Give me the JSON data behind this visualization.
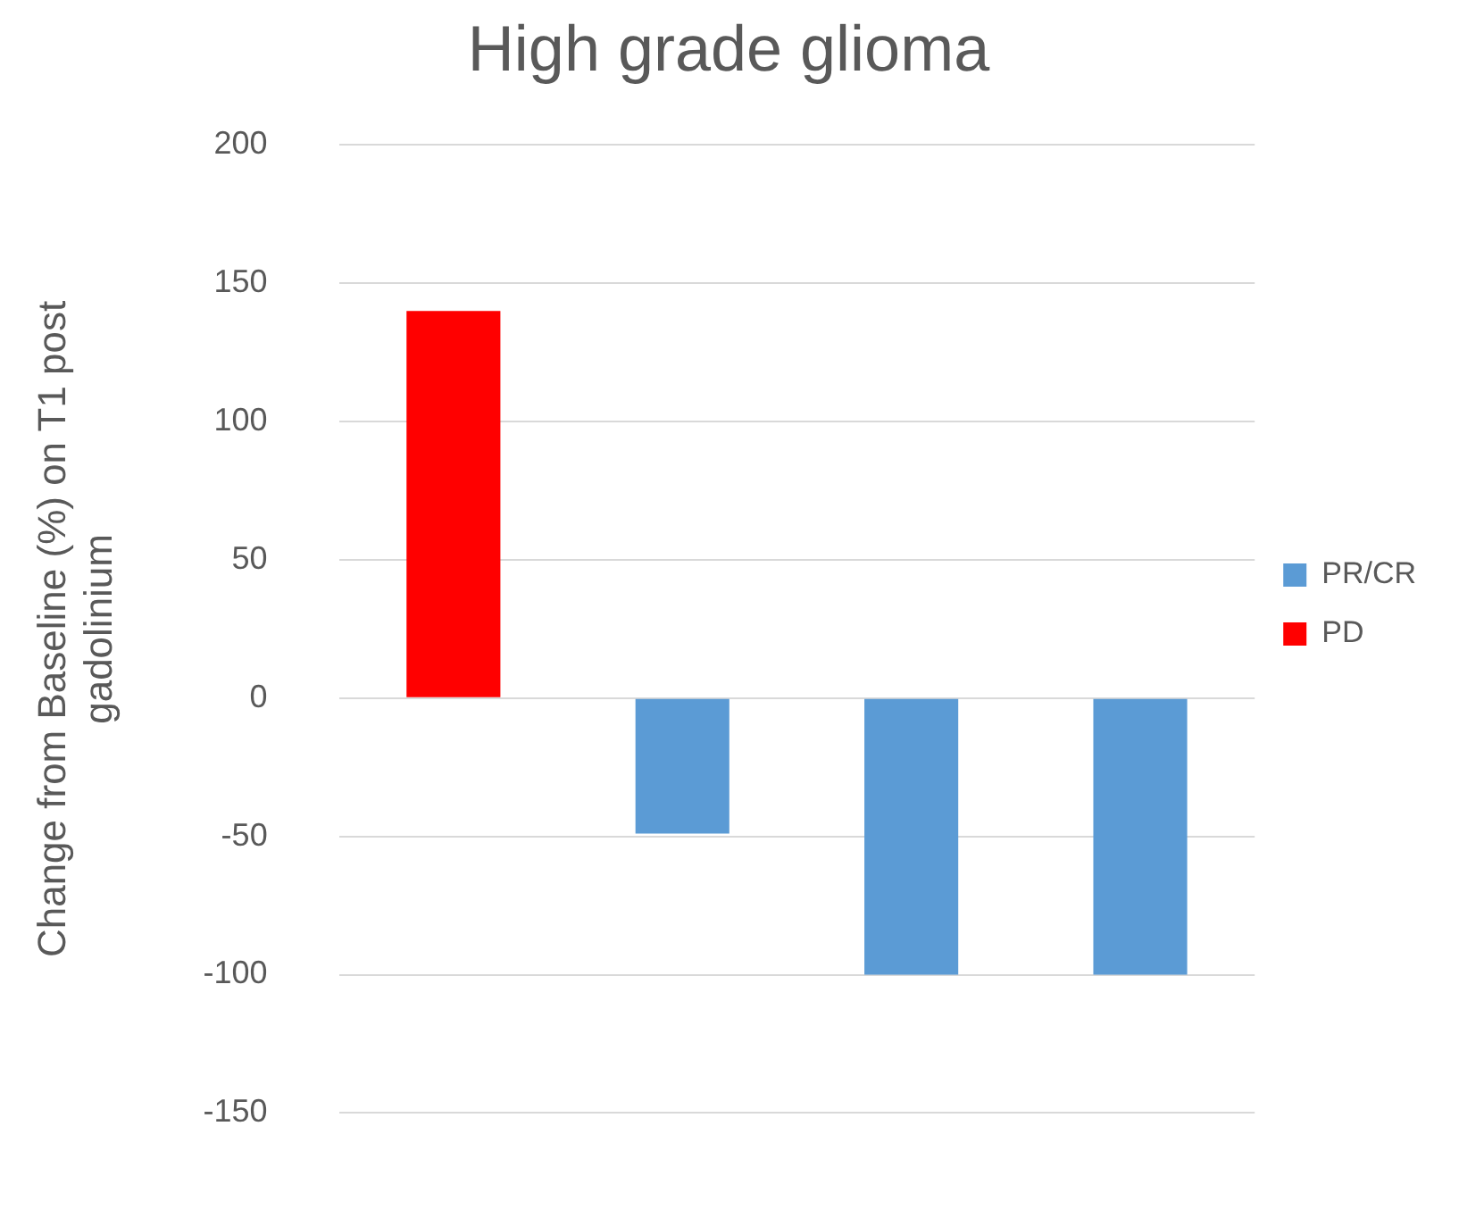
{
  "chart_data": {
    "type": "bar",
    "title": "High grade glioma",
    "ylabel": "Change from Baseline (%) on T1 post gadolinium",
    "categories": [
      null,
      null,
      null,
      null
    ],
    "series": [
      {
        "name": "PR/CR",
        "color": "#5b9bd5",
        "values": [
          null,
          -49,
          -100,
          -100
        ]
      },
      {
        "name": "PD",
        "color": "#ff0000",
        "values": [
          140,
          null,
          null,
          null
        ]
      }
    ],
    "ylim": [
      -150,
      200
    ],
    "yticks": [
      -150,
      -100,
      -50,
      0,
      50,
      100,
      150,
      200
    ],
    "grid": "y",
    "legend": "right"
  }
}
